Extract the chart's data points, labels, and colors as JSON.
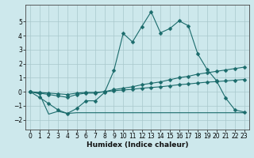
{
  "xlabel": "Humidex (Indice chaleur)",
  "bg_color": "#cde8ec",
  "grid_color": "#a8c8cc",
  "line_color": "#1a6b6b",
  "xlim": [
    -0.5,
    23.5
  ],
  "ylim": [
    -2.7,
    6.2
  ],
  "xticks": [
    0,
    1,
    2,
    3,
    4,
    5,
    6,
    7,
    8,
    9,
    10,
    11,
    12,
    13,
    14,
    15,
    16,
    17,
    18,
    19,
    20,
    21,
    22,
    23
  ],
  "yticks": [
    -2,
    -1,
    0,
    1,
    2,
    3,
    4,
    5
  ],
  "x": [
    0,
    1,
    2,
    3,
    4,
    5,
    6,
    7,
    8,
    9,
    10,
    11,
    12,
    13,
    14,
    15,
    16,
    17,
    18,
    19,
    20,
    21,
    22,
    23
  ],
  "line_main_y": [
    0.0,
    -0.4,
    -0.85,
    -1.3,
    -1.55,
    -1.2,
    -0.65,
    -0.65,
    -0.05,
    1.5,
    4.15,
    3.55,
    4.65,
    5.7,
    4.2,
    4.5,
    5.05,
    4.7,
    2.7,
    1.6,
    0.8,
    -0.45,
    -1.3,
    -1.45
  ],
  "line_upper_diag_y": [
    0.0,
    -0.1,
    -0.2,
    -0.3,
    -0.4,
    -0.2,
    -0.1,
    -0.1,
    0.0,
    0.15,
    0.25,
    0.35,
    0.5,
    0.6,
    0.7,
    0.85,
    1.0,
    1.1,
    1.25,
    1.35,
    1.45,
    1.55,
    1.65,
    1.75
  ],
  "line_lower_diag_y": [
    0.0,
    -0.05,
    -0.1,
    -0.15,
    -0.2,
    -0.1,
    -0.05,
    -0.05,
    0.0,
    0.07,
    0.12,
    0.17,
    0.25,
    0.3,
    0.35,
    0.42,
    0.5,
    0.55,
    0.62,
    0.68,
    0.72,
    0.77,
    0.82,
    0.87
  ],
  "line_flat_y": [
    0.0,
    -0.15,
    -1.6,
    -1.4,
    -1.55,
    -1.5,
    -1.5,
    -1.5,
    -1.5,
    -1.5,
    -1.5,
    -1.5,
    -1.5,
    -1.5,
    -1.5,
    -1.5,
    -1.5,
    -1.5,
    -1.5,
    -1.5,
    -1.5,
    -1.5,
    -1.5,
    -1.5
  ]
}
